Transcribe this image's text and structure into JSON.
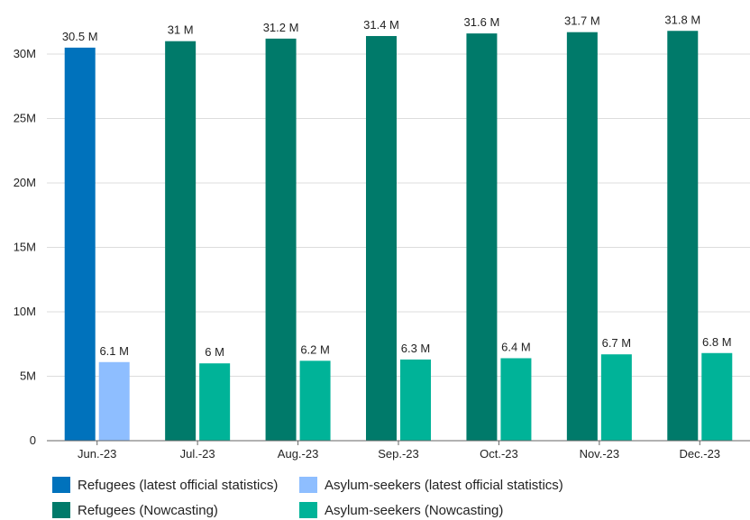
{
  "chart_data": {
    "type": "bar",
    "categories": [
      "Jun.-23",
      "Jul.-23",
      "Aug.-23",
      "Sep.-23",
      "Oct.-23",
      "Nov.-23",
      "Dec.-23"
    ],
    "ylim": [
      0,
      32000000
    ],
    "yticks": [
      0,
      5000000,
      10000000,
      15000000,
      20000000,
      25000000,
      30000000
    ],
    "ytick_labels": [
      "0",
      "5M",
      "10M",
      "15M",
      "20M",
      "25M",
      "30M"
    ],
    "grid": true,
    "legend_placement": "bottom-left",
    "series": [
      {
        "name": "Refugees (latest official statistics)",
        "color": "#0072bc",
        "values": [
          30500000,
          null,
          null,
          null,
          null,
          null,
          null
        ],
        "labels": [
          "30.5 M",
          "",
          "",
          "",
          "",
          "",
          ""
        ]
      },
      {
        "name": "Asylum-seekers (latest official statistics)",
        "color": "#8ebeff",
        "values": [
          6100000,
          null,
          null,
          null,
          null,
          null,
          null
        ],
        "labels": [
          "6.1 M",
          "",
          "",
          "",
          "",
          "",
          ""
        ]
      },
      {
        "name": "Refugees (Nowcasting)",
        "color": "#007a6a",
        "values": [
          null,
          31000000,
          31200000,
          31400000,
          31600000,
          31700000,
          31800000
        ],
        "labels": [
          "",
          "31 M",
          "31.2 M",
          "31.4 M",
          "31.6 M",
          "31.7 M",
          "31.8 M"
        ]
      },
      {
        "name": "Asylum-seekers (Nowcasting)",
        "color": "#00b398",
        "values": [
          null,
          6000000,
          6200000,
          6300000,
          6400000,
          6700000,
          6800000
        ],
        "labels": [
          "",
          "6 M",
          "6.2 M",
          "6.3 M",
          "6.4 M",
          "6.7 M",
          "6.8 M"
        ]
      }
    ]
  }
}
